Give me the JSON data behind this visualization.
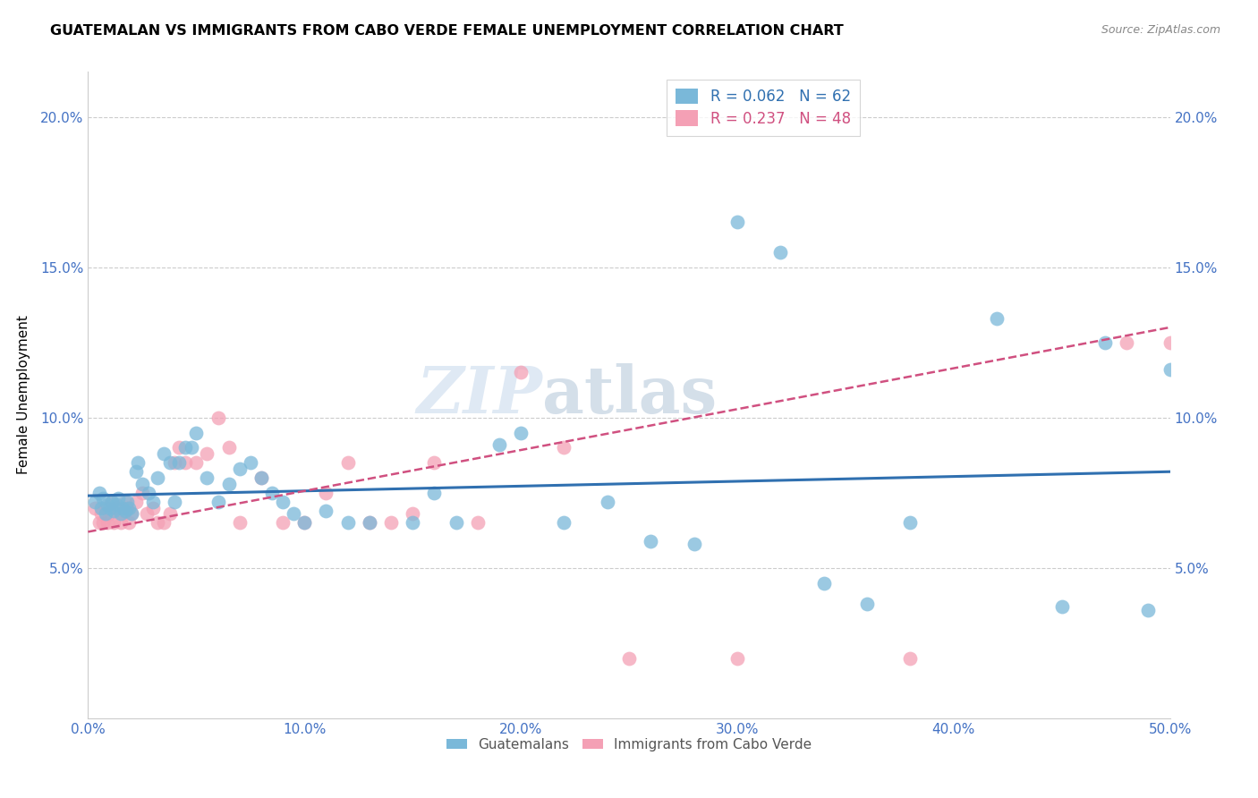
{
  "title": "GUATEMALAN VS IMMIGRANTS FROM CABO VERDE FEMALE UNEMPLOYMENT CORRELATION CHART",
  "source": "Source: ZipAtlas.com",
  "ylabel": "Female Unemployment",
  "xlim": [
    0.0,
    0.5
  ],
  "ylim": [
    0.0,
    0.215
  ],
  "yticks": [
    0.05,
    0.1,
    0.15,
    0.2
  ],
  "xticks": [
    0.0,
    0.1,
    0.2,
    0.3,
    0.4,
    0.5
  ],
  "xtick_labels": [
    "0.0%",
    "10.0%",
    "20.0%",
    "30.0%",
    "40.0%",
    "50.0%"
  ],
  "ytick_labels": [
    "5.0%",
    "10.0%",
    "15.0%",
    "20.0%"
  ],
  "blue_color": "#7ab8d9",
  "pink_color": "#f4a0b5",
  "trendline_blue": "#3070b0",
  "trendline_pink": "#d05080",
  "legend1_R": "0.062",
  "legend1_N": "62",
  "legend2_R": "0.237",
  "legend2_N": "48",
  "legend1_label": "Guatemalans",
  "legend2_label": "Immigrants from Cabo Verde",
  "watermark1": "ZIP",
  "watermark2": "atlas",
  "blue_x": [
    0.003,
    0.005,
    0.006,
    0.007,
    0.008,
    0.009,
    0.01,
    0.011,
    0.012,
    0.013,
    0.014,
    0.015,
    0.016,
    0.017,
    0.018,
    0.019,
    0.02,
    0.022,
    0.023,
    0.025,
    0.028,
    0.03,
    0.032,
    0.035,
    0.038,
    0.04,
    0.042,
    0.045,
    0.048,
    0.05,
    0.055,
    0.06,
    0.065,
    0.07,
    0.075,
    0.08,
    0.085,
    0.09,
    0.095,
    0.1,
    0.11,
    0.12,
    0.13,
    0.15,
    0.16,
    0.17,
    0.19,
    0.2,
    0.22,
    0.24,
    0.26,
    0.28,
    0.3,
    0.32,
    0.34,
    0.36,
    0.38,
    0.42,
    0.45,
    0.47,
    0.49,
    0.5
  ],
  "blue_y": [
    0.072,
    0.075,
    0.07,
    0.073,
    0.068,
    0.071,
    0.07,
    0.072,
    0.069,
    0.071,
    0.073,
    0.068,
    0.07,
    0.069,
    0.072,
    0.07,
    0.068,
    0.082,
    0.085,
    0.078,
    0.075,
    0.072,
    0.08,
    0.088,
    0.085,
    0.072,
    0.085,
    0.09,
    0.09,
    0.095,
    0.08,
    0.072,
    0.078,
    0.083,
    0.085,
    0.08,
    0.075,
    0.072,
    0.068,
    0.065,
    0.069,
    0.065,
    0.065,
    0.065,
    0.075,
    0.065,
    0.091,
    0.095,
    0.065,
    0.072,
    0.059,
    0.058,
    0.165,
    0.155,
    0.045,
    0.038,
    0.065,
    0.133,
    0.037,
    0.125,
    0.036,
    0.116
  ],
  "pink_x": [
    0.003,
    0.005,
    0.006,
    0.007,
    0.008,
    0.009,
    0.01,
    0.011,
    0.012,
    0.013,
    0.015,
    0.016,
    0.017,
    0.018,
    0.019,
    0.02,
    0.022,
    0.025,
    0.027,
    0.03,
    0.032,
    0.035,
    0.038,
    0.04,
    0.042,
    0.045,
    0.05,
    0.055,
    0.06,
    0.065,
    0.07,
    0.08,
    0.09,
    0.1,
    0.11,
    0.12,
    0.13,
    0.14,
    0.15,
    0.16,
    0.18,
    0.2,
    0.22,
    0.25,
    0.3,
    0.38,
    0.48,
    0.5
  ],
  "pink_y": [
    0.07,
    0.065,
    0.068,
    0.065,
    0.07,
    0.065,
    0.068,
    0.072,
    0.065,
    0.07,
    0.065,
    0.068,
    0.072,
    0.07,
    0.065,
    0.068,
    0.072,
    0.075,
    0.068,
    0.07,
    0.065,
    0.065,
    0.068,
    0.085,
    0.09,
    0.085,
    0.085,
    0.088,
    0.1,
    0.09,
    0.065,
    0.08,
    0.065,
    0.065,
    0.075,
    0.085,
    0.065,
    0.065,
    0.068,
    0.085,
    0.065,
    0.115,
    0.09,
    0.02,
    0.02,
    0.02,
    0.125,
    0.125
  ],
  "blue_trendline_x": [
    0.0,
    0.5
  ],
  "blue_trendline_y": [
    0.074,
    0.082
  ],
  "pink_trendline_x": [
    0.0,
    0.5
  ],
  "pink_trendline_y": [
    0.062,
    0.13
  ]
}
